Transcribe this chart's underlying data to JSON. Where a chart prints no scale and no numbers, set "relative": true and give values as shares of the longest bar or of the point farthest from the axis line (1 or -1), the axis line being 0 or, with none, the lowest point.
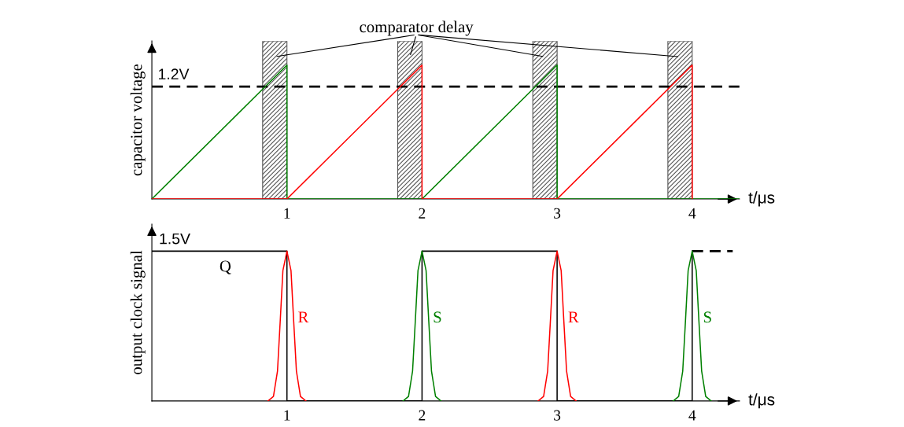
{
  "chart_data": [
    {
      "type": "line",
      "relative": true,
      "ylabel": "capacitor voltage",
      "xlabel": "t/μs",
      "xlim": [
        0,
        4.35
      ],
      "xticks": [
        1,
        2,
        3,
        4
      ],
      "grid": false,
      "legend": false,
      "marker": "none",
      "annotations": [
        "comparator delay"
      ],
      "ref_lines": [
        {
          "axis": "y",
          "value": 0.84,
          "label": "1.2V",
          "color": "#000000",
          "line_style": "dashed"
        }
      ],
      "bands": [
        {
          "axis": "x",
          "from": 0.82,
          "to": 1.0,
          "color": "#555555"
        },
        {
          "axis": "x",
          "from": 1.82,
          "to": 2.0,
          "color": "#555555"
        },
        {
          "axis": "x",
          "from": 2.82,
          "to": 3.0,
          "color": "#555555"
        },
        {
          "axis": "x",
          "from": 3.82,
          "to": 4.0,
          "color": "#555555"
        }
      ],
      "series": [
        {
          "color": "#008000",
          "x": [
            0,
            1,
            1,
            2,
            3,
            3,
            4.35
          ],
          "values": [
            0,
            1,
            0,
            0,
            1,
            0,
            0
          ]
        },
        {
          "color": "#ff0000",
          "x": [
            0,
            1,
            2,
            2,
            3,
            4,
            4
          ],
          "values": [
            0,
            0,
            1,
            0,
            0,
            1,
            0
          ]
        }
      ]
    },
    {
      "type": "line",
      "relative": true,
      "ylabel": "output clock signal",
      "xlabel": "t/μs",
      "xlim": [
        0,
        4.35
      ],
      "xticks": [
        1,
        2,
        3,
        4
      ],
      "grid": false,
      "legend": false,
      "marker": "none",
      "annotations": [
        "1.5V"
      ],
      "series": [
        {
          "name": "Q",
          "color": "#000000",
          "x": [
            0,
            1,
            1,
            2,
            2,
            3,
            3,
            4,
            4
          ],
          "values": [
            1,
            1,
            0,
            0,
            1,
            1,
            0,
            0,
            1
          ]
        },
        {
          "color": "#000000",
          "line_style": "dashed",
          "x": [
            4,
            4.3
          ],
          "values": [
            1,
            1
          ]
        },
        {
          "name": "R",
          "color": "#ff0000",
          "x": [
            0.86,
            0.9,
            0.93,
            0.95,
            0.97,
            1.0,
            1.03,
            1.05,
            1.07,
            1.1,
            1.14
          ],
          "values": [
            0,
            0.03,
            0.2,
            0.53,
            0.87,
            1,
            0.87,
            0.53,
            0.2,
            0.03,
            0
          ]
        },
        {
          "name": "S",
          "color": "#008000",
          "x": [
            1.86,
            1.9,
            1.93,
            1.95,
            1.97,
            2.0,
            2.03,
            2.05,
            2.07,
            2.1,
            2.14
          ],
          "values": [
            0,
            0.03,
            0.2,
            0.53,
            0.87,
            1,
            0.87,
            0.53,
            0.2,
            0.03,
            0
          ]
        },
        {
          "name": "R",
          "color": "#ff0000",
          "x": [
            2.86,
            2.9,
            2.93,
            2.95,
            2.97,
            3.0,
            3.03,
            3.05,
            3.07,
            3.1,
            3.14
          ],
          "values": [
            0,
            0.03,
            0.2,
            0.53,
            0.87,
            1,
            0.87,
            0.53,
            0.2,
            0.03,
            0
          ]
        },
        {
          "name": "S",
          "color": "#008000",
          "x": [
            3.86,
            3.9,
            3.93,
            3.95,
            3.97,
            4.0,
            4.03,
            4.05,
            4.07,
            4.1,
            4.14
          ],
          "values": [
            0,
            0.03,
            0.2,
            0.53,
            0.87,
            1,
            0.87,
            0.53,
            0.2,
            0.03,
            0
          ]
        }
      ]
    }
  ]
}
